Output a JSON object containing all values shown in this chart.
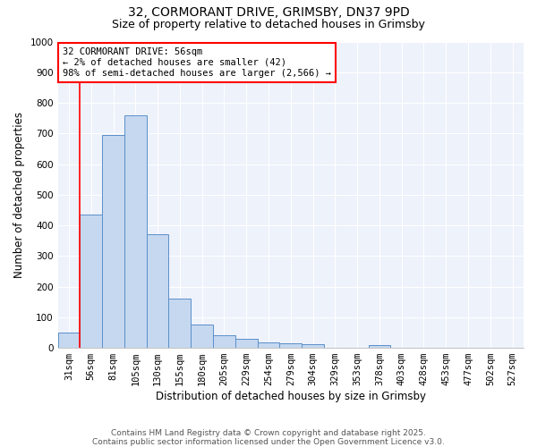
{
  "title": "32, CORMORANT DRIVE, GRIMSBY, DN37 9PD",
  "subtitle": "Size of property relative to detached houses in Grimsby",
  "xlabel": "Distribution of detached houses by size in Grimsby",
  "ylabel": "Number of detached properties",
  "footer_line1": "Contains HM Land Registry data © Crown copyright and database right 2025.",
  "footer_line2": "Contains public sector information licensed under the Open Government Licence v3.0.",
  "categories": [
    "31sqm",
    "56sqm",
    "81sqm",
    "105sqm",
    "130sqm",
    "155sqm",
    "180sqm",
    "205sqm",
    "229sqm",
    "254sqm",
    "279sqm",
    "304sqm",
    "329sqm",
    "353sqm",
    "378sqm",
    "403sqm",
    "428sqm",
    "453sqm",
    "477sqm",
    "502sqm",
    "527sqm"
  ],
  "values": [
    50,
    435,
    695,
    760,
    370,
    160,
    75,
    40,
    30,
    18,
    15,
    12,
    0,
    0,
    8,
    0,
    0,
    0,
    0,
    0,
    0
  ],
  "bar_color": "#c5d8f0",
  "bar_edge_color": "#5b8fc9",
  "red_line_index": 1,
  "annotation_line1": "32 CORMORANT DRIVE: 56sqm",
  "annotation_line2": "← 2% of detached houses are smaller (42)",
  "annotation_line3": "98% of semi-detached houses are larger (2,566) →",
  "ylim": [
    0,
    1000
  ],
  "yticks": [
    0,
    100,
    200,
    300,
    400,
    500,
    600,
    700,
    800,
    900,
    1000
  ],
  "background_color": "#eef2fb",
  "grid_color": "#ffffff",
  "title_fontsize": 10,
  "subtitle_fontsize": 9,
  "axis_label_fontsize": 8.5,
  "tick_fontsize": 7.5,
  "annotation_fontsize": 7.5,
  "footer_fontsize": 6.5
}
